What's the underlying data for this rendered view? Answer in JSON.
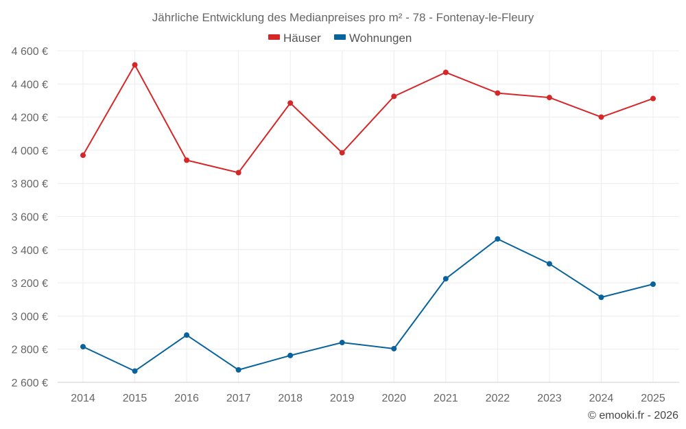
{
  "chart_data": {
    "type": "line",
    "title": "Jährliche Entwicklung des Medianpreises pro m² - 78 - Fontenay-le-Fleury",
    "x": [
      "2014",
      "2015",
      "2016",
      "2017",
      "2018",
      "2019",
      "2020",
      "2021",
      "2022",
      "2023",
      "2024",
      "2025"
    ],
    "series": [
      {
        "name": "Häuser",
        "color": "#d62728",
        "values": [
          3970,
          4515,
          3940,
          3865,
          4285,
          3985,
          4325,
          4470,
          4345,
          4318,
          4200,
          4312
        ]
      },
      {
        "name": "Wohnungen",
        "color": "#08639c",
        "values": [
          2815,
          2668,
          2885,
          2675,
          2762,
          2840,
          2803,
          3225,
          3465,
          3315,
          3113,
          3192
        ]
      }
    ],
    "ylim": [
      2600,
      4600
    ],
    "yticks": [
      2600,
      2800,
      3000,
      3200,
      3400,
      3600,
      3800,
      4000,
      4200,
      4400,
      4600
    ],
    "ytick_labels": [
      "2 600 €",
      "2 800 €",
      "3 000 €",
      "3 200 €",
      "3 400 €",
      "3 600 €",
      "3 800 €",
      "4 000 €",
      "4 200 €",
      "4 400 €",
      "4 600 €"
    ],
    "grid": true,
    "legend_position": "top-center"
  },
  "credit": "© emooki.fr - 2026"
}
